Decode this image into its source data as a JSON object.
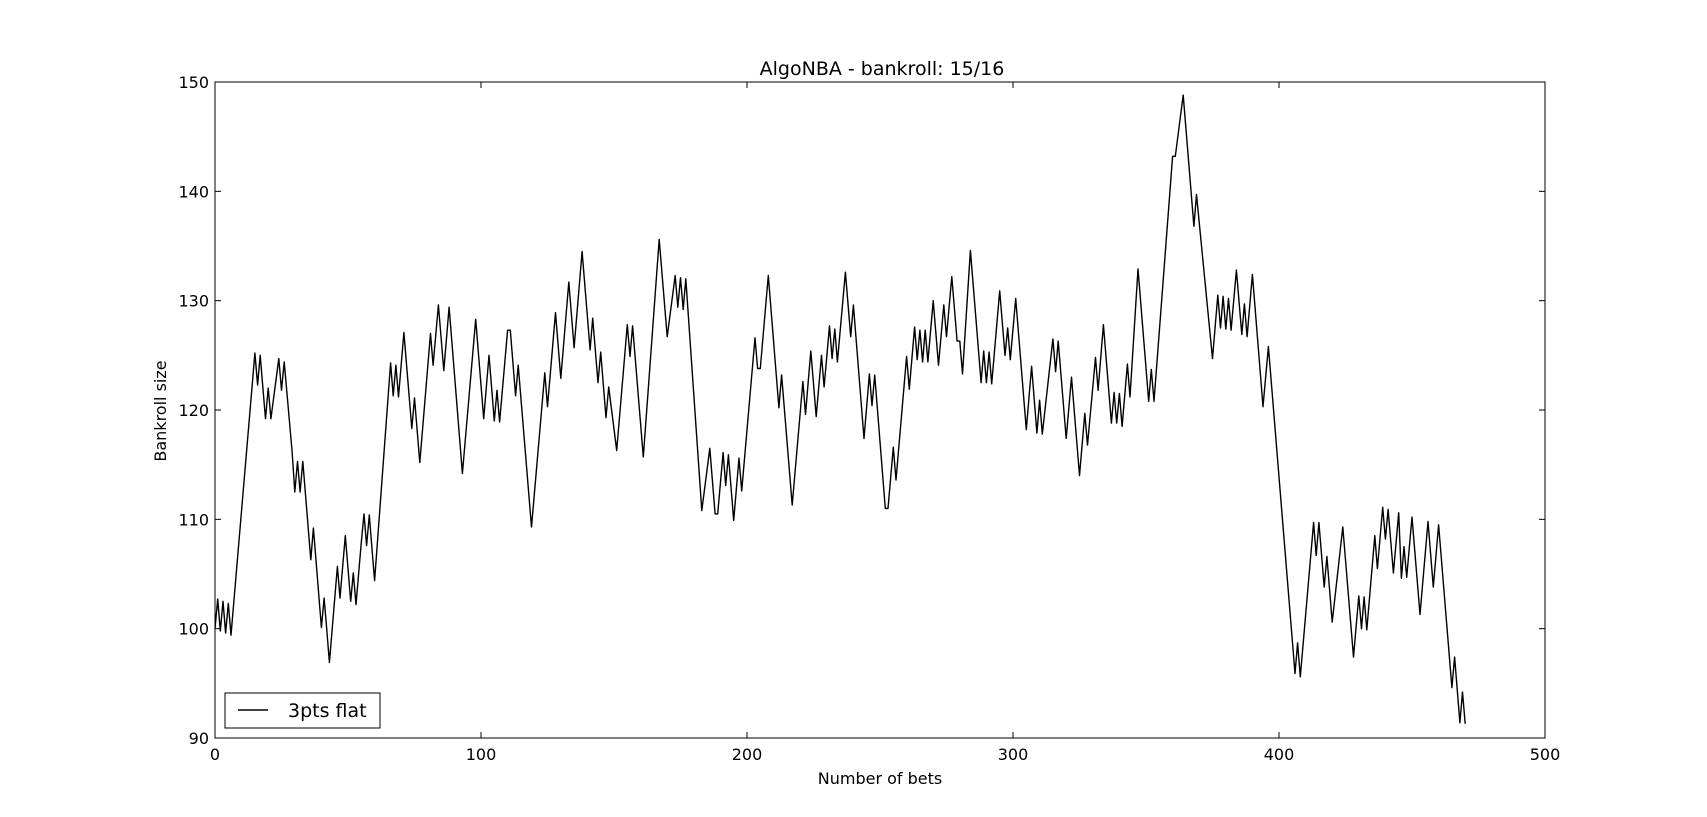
{
  "chart_data": {
    "type": "line",
    "title": "AlgoNBA - bankroll: 15/16",
    "xlabel": "Number of bets",
    "ylabel": "Bankroll size",
    "xlim": [
      0,
      500
    ],
    "ylim": [
      90,
      150
    ],
    "xticks": [
      "0",
      "100",
      "200",
      "300",
      "400",
      "500"
    ],
    "yticks": [
      "90",
      "100",
      "110",
      "120",
      "130",
      "140",
      "150"
    ],
    "grid": false,
    "legend_position": "lower-left",
    "line_color": "#000000",
    "series": [
      {
        "name": "3pts flat",
        "points": [
          [
            0,
            100.0
          ],
          [
            1,
            102.7
          ],
          [
            2,
            99.8
          ],
          [
            3,
            102.5
          ],
          [
            4,
            99.6
          ],
          [
            5,
            102.3
          ],
          [
            6,
            99.4
          ],
          [
            15,
            125.2
          ],
          [
            16,
            122.3
          ],
          [
            17,
            125.0
          ],
          [
            18,
            122.0
          ],
          [
            19,
            119.2
          ],
          [
            20,
            122.0
          ],
          [
            21,
            119.2
          ],
          [
            24,
            124.7
          ],
          [
            25,
            121.8
          ],
          [
            26,
            124.4
          ],
          [
            29,
            116.2
          ],
          [
            30,
            112.5
          ],
          [
            31,
            115.3
          ],
          [
            32,
            112.5
          ],
          [
            33,
            115.3
          ],
          [
            36,
            106.3
          ],
          [
            37,
            109.2
          ],
          [
            40,
            100.1
          ],
          [
            41,
            102.8
          ],
          [
            42,
            100.0
          ],
          [
            43,
            96.9
          ],
          [
            46,
            105.7
          ],
          [
            47,
            102.8
          ],
          [
            49,
            108.5
          ],
          [
            51,
            102.5
          ],
          [
            52,
            105.1
          ],
          [
            53,
            102.2
          ],
          [
            55,
            107.9
          ],
          [
            56,
            110.5
          ],
          [
            57,
            107.6
          ],
          [
            58,
            110.4
          ],
          [
            59,
            107.4
          ],
          [
            60,
            104.4
          ],
          [
            66,
            124.3
          ],
          [
            67,
            121.3
          ],
          [
            68,
            124.1
          ],
          [
            69,
            121.2
          ],
          [
            71,
            127.1
          ],
          [
            74,
            118.3
          ],
          [
            75,
            121.1
          ],
          [
            77,
            115.2
          ],
          [
            81,
            127.0
          ],
          [
            82,
            124.1
          ],
          [
            84,
            129.6
          ],
          [
            86,
            123.6
          ],
          [
            88,
            129.4
          ],
          [
            93,
            114.2
          ],
          [
            98,
            128.3
          ],
          [
            101,
            119.2
          ],
          [
            103,
            125.0
          ],
          [
            105,
            119.0
          ],
          [
            106,
            121.8
          ],
          [
            107,
            118.9
          ],
          [
            110,
            127.3
          ],
          [
            111,
            127.3
          ],
          [
            113,
            121.3
          ],
          [
            114,
            124.1
          ],
          [
            119,
            109.3
          ],
          [
            124,
            123.4
          ],
          [
            125,
            120.3
          ],
          [
            127,
            126.0
          ],
          [
            128,
            128.9
          ],
          [
            130,
            122.9
          ],
          [
            133,
            131.7
          ],
          [
            135,
            125.7
          ],
          [
            138,
            134.5
          ],
          [
            141,
            125.5
          ],
          [
            142,
            128.4
          ],
          [
            144,
            122.5
          ],
          [
            145,
            125.3
          ],
          [
            147,
            119.3
          ],
          [
            148,
            122.1
          ],
          [
            151,
            116.3
          ],
          [
            155,
            127.8
          ],
          [
            156,
            124.9
          ],
          [
            157,
            127.7
          ],
          [
            161,
            115.7
          ],
          [
            167,
            135.6
          ],
          [
            170,
            126.7
          ],
          [
            173,
            132.3
          ],
          [
            174,
            129.4
          ],
          [
            175,
            132.1
          ],
          [
            176,
            129.2
          ],
          [
            177,
            132.0
          ],
          [
            183,
            110.8
          ],
          [
            186,
            116.5
          ],
          [
            188,
            110.5
          ],
          [
            189,
            110.5
          ],
          [
            191,
            116.1
          ],
          [
            192,
            113.1
          ],
          [
            193,
            115.9
          ],
          [
            195,
            109.9
          ],
          [
            197,
            115.6
          ],
          [
            198,
            112.6
          ],
          [
            203,
            126.6
          ],
          [
            204,
            123.8
          ],
          [
            205,
            123.8
          ],
          [
            208,
            132.3
          ],
          [
            212,
            120.2
          ],
          [
            213,
            123.2
          ],
          [
            217,
            111.3
          ],
          [
            221,
            122.6
          ],
          [
            222,
            119.6
          ],
          [
            224,
            125.4
          ],
          [
            226,
            119.4
          ],
          [
            228,
            125.0
          ],
          [
            229,
            122.1
          ],
          [
            231,
            127.7
          ],
          [
            232,
            124.7
          ],
          [
            233,
            127.4
          ],
          [
            234,
            124.4
          ],
          [
            237,
            132.6
          ],
          [
            239,
            126.7
          ],
          [
            240,
            129.6
          ],
          [
            244,
            117.4
          ],
          [
            246,
            123.3
          ],
          [
            247,
            120.4
          ],
          [
            248,
            123.2
          ],
          [
            252,
            111.0
          ],
          [
            253,
            111.0
          ],
          [
            255,
            116.6
          ],
          [
            256,
            113.6
          ],
          [
            260,
            124.9
          ],
          [
            261,
            121.9
          ],
          [
            263,
            127.6
          ],
          [
            264,
            124.6
          ],
          [
            265,
            127.3
          ],
          [
            266,
            124.4
          ],
          [
            267,
            127.3
          ],
          [
            268,
            124.4
          ],
          [
            270,
            130.0
          ],
          [
            272,
            124.1
          ],
          [
            274,
            129.6
          ],
          [
            275,
            126.7
          ],
          [
            277,
            132.2
          ],
          [
            279,
            126.3
          ],
          [
            280,
            126.3
          ],
          [
            281,
            123.3
          ],
          [
            284,
            134.6
          ],
          [
            288,
            122.5
          ],
          [
            289,
            125.4
          ],
          [
            290,
            122.5
          ],
          [
            291,
            125.3
          ],
          [
            292,
            122.4
          ],
          [
            295,
            130.9
          ],
          [
            297,
            125.0
          ],
          [
            298,
            127.5
          ],
          [
            299,
            124.6
          ],
          [
            301,
            130.2
          ],
          [
            305,
            118.2
          ],
          [
            307,
            124.0
          ],
          [
            309,
            117.9
          ],
          [
            310,
            120.9
          ],
          [
            311,
            117.8
          ],
          [
            315,
            126.5
          ],
          [
            316,
            123.5
          ],
          [
            317,
            126.3
          ],
          [
            320,
            117.4
          ],
          [
            322,
            123.0
          ],
          [
            325,
            114.0
          ],
          [
            327,
            119.7
          ],
          [
            328,
            116.8
          ],
          [
            331,
            124.8
          ],
          [
            332,
            121.8
          ],
          [
            334,
            127.8
          ],
          [
            337,
            118.8
          ],
          [
            338,
            121.6
          ],
          [
            339,
            118.8
          ],
          [
            340,
            121.5
          ],
          [
            341,
            118.5
          ],
          [
            343,
            124.2
          ],
          [
            344,
            121.2
          ],
          [
            347,
            132.9
          ],
          [
            351,
            120.8
          ],
          [
            352,
            123.7
          ],
          [
            353,
            120.8
          ],
          [
            360,
            143.2
          ],
          [
            361,
            143.2
          ],
          [
            364,
            148.8
          ],
          [
            368,
            136.8
          ],
          [
            369,
            139.7
          ],
          [
            375,
            124.7
          ],
          [
            377,
            130.5
          ],
          [
            378,
            127.5
          ],
          [
            379,
            130.4
          ],
          [
            380,
            127.4
          ],
          [
            381,
            130.2
          ],
          [
            382,
            127.3
          ],
          [
            384,
            132.8
          ],
          [
            386,
            126.9
          ],
          [
            387,
            129.7
          ],
          [
            388,
            126.7
          ],
          [
            390,
            132.4
          ],
          [
            394,
            120.3
          ],
          [
            396,
            125.8
          ],
          [
            406,
            95.9
          ],
          [
            407,
            98.7
          ],
          [
            408,
            95.6
          ],
          [
            413,
            109.7
          ],
          [
            414,
            106.7
          ],
          [
            415,
            109.7
          ],
          [
            417,
            103.8
          ],
          [
            418,
            106.6
          ],
          [
            420,
            100.6
          ],
          [
            424,
            109.3
          ],
          [
            428,
            97.4
          ],
          [
            430,
            103.0
          ],
          [
            431,
            100.0
          ],
          [
            432,
            102.9
          ],
          [
            433,
            99.9
          ],
          [
            436,
            108.5
          ],
          [
            437,
            105.5
          ],
          [
            439,
            111.1
          ],
          [
            440,
            108.2
          ],
          [
            441,
            110.9
          ],
          [
            443,
            105.1
          ],
          [
            445,
            110.6
          ],
          [
            446,
            104.6
          ],
          [
            447,
            107.5
          ],
          [
            448,
            104.7
          ],
          [
            450,
            110.2
          ],
          [
            453,
            101.3
          ],
          [
            456,
            109.8
          ],
          [
            458,
            103.8
          ],
          [
            460,
            109.5
          ],
          [
            465,
            94.6
          ],
          [
            466,
            97.4
          ],
          [
            468,
            91.4
          ],
          [
            469,
            94.2
          ],
          [
            470,
            91.3
          ]
        ]
      }
    ]
  }
}
